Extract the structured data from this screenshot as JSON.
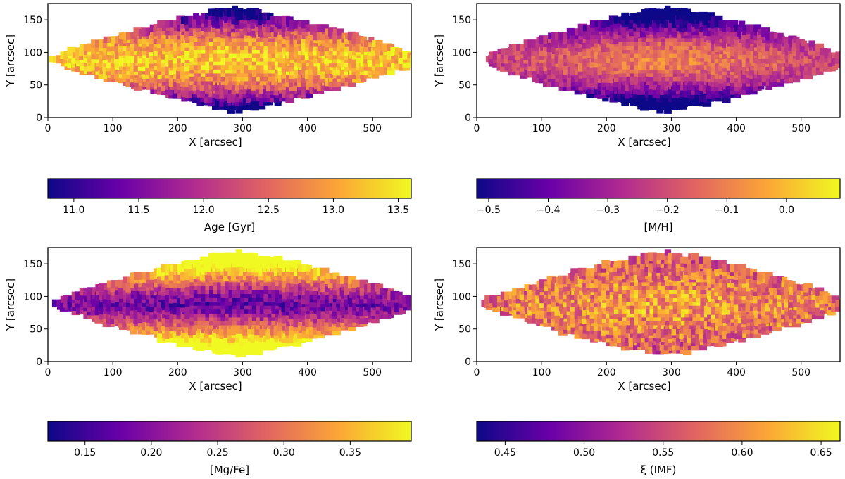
{
  "colors": {
    "colormap": "plasma",
    "colormap_stops": [
      "#0d0887",
      "#6a00a8",
      "#b12a90",
      "#e16462",
      "#fca636",
      "#f0f921"
    ]
  },
  "chart_data": [
    {
      "type": "heatmap",
      "xlabel": "X [arcsec]",
      "ylabel": "Y [arcsec]",
      "xlim": [
        0,
        560
      ],
      "ylim": [
        0,
        175
      ],
      "x_ticks": [
        "0",
        "100",
        "200",
        "300",
        "400",
        "500"
      ],
      "y_ticks": [
        "0",
        "50",
        "100",
        "150"
      ],
      "colorbar_label": "Age [Gyr]",
      "colorbar_range": [
        10.8,
        13.6
      ],
      "colorbar_ticks": [
        "11.0",
        "11.5",
        "12.0",
        "12.5",
        "13.0",
        "13.5"
      ]
    },
    {
      "type": "heatmap",
      "xlabel": "X [arcsec]",
      "ylabel": "Y [arcsec]",
      "xlim": [
        0,
        560
      ],
      "ylim": [
        0,
        175
      ],
      "x_ticks": [
        "0",
        "100",
        "200",
        "300",
        "400",
        "500"
      ],
      "y_ticks": [
        "0",
        "50",
        "100",
        "150"
      ],
      "colorbar_label": "[M/H]",
      "colorbar_range": [
        -0.52,
        0.09
      ],
      "colorbar_ticks": [
        "−0.5",
        "−0.4",
        "−0.3",
        "−0.2",
        "−0.1",
        "0.0"
      ]
    },
    {
      "type": "heatmap",
      "xlabel": "X [arcsec]",
      "ylabel": "Y [arcsec]",
      "xlim": [
        0,
        560
      ],
      "ylim": [
        0,
        175
      ],
      "x_ticks": [
        "0",
        "100",
        "200",
        "300",
        "400",
        "500"
      ],
      "y_ticks": [
        "0",
        "50",
        "100",
        "150"
      ],
      "colorbar_label": "[Mg/Fe]",
      "colorbar_range": [
        0.122,
        0.396
      ],
      "colorbar_ticks": [
        "0.15",
        "0.20",
        "0.25",
        "0.30",
        "0.35"
      ]
    },
    {
      "type": "heatmap",
      "xlabel": "X [arcsec]",
      "ylabel": "Y [arcsec]",
      "xlim": [
        0,
        560
      ],
      "ylim": [
        0,
        175
      ],
      "x_ticks": [
        "0",
        "100",
        "200",
        "300",
        "400",
        "500"
      ],
      "y_ticks": [
        "0",
        "50",
        "100",
        "150"
      ],
      "colorbar_label": "ξ (IMF)",
      "colorbar_range": [
        0.432,
        0.662
      ],
      "colorbar_ticks": [
        "0.45",
        "0.50",
        "0.55",
        "0.60",
        "0.65"
      ]
    }
  ]
}
